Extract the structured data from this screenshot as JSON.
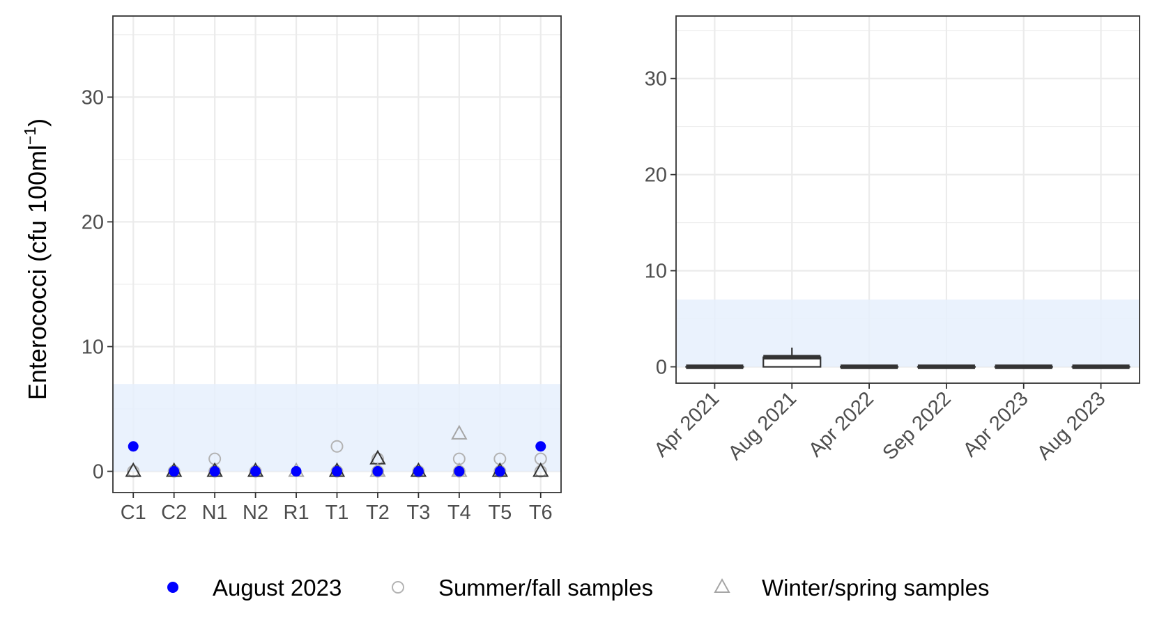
{
  "y_axis_label": "Enterococci (cfu 100ml",
  "y_axis_label_sup": "−1",
  "y_axis_label_close": ")",
  "colors": {
    "august": "#0000ff",
    "summer": "#b3b3b3",
    "winter_light": "#a6a6a6",
    "winter_dark": "#333333",
    "band": "#e6f0fd",
    "grid": "#ebebeb",
    "box": "#333333"
  },
  "chart_data": [
    {
      "type": "scatter",
      "categories": [
        "C1",
        "C2",
        "N1",
        "N2",
        "R1",
        "T1",
        "T2",
        "T3",
        "T4",
        "T5",
        "T6"
      ],
      "ylim": [
        -1.7,
        36.5
      ],
      "yticks": [
        "0",
        "10",
        "20",
        "30"
      ],
      "reference_band": [
        0,
        7
      ],
      "grid": true,
      "series": [
        {
          "name": "August 2023",
          "marker": "filled-circle",
          "points": [
            [
              "C1",
              2
            ],
            [
              "C2",
              0
            ],
            [
              "N1",
              0
            ],
            [
              "N2",
              0
            ],
            [
              "R1",
              0
            ],
            [
              "T1",
              0
            ],
            [
              "T2",
              0
            ],
            [
              "T3",
              0
            ],
            [
              "T4",
              0
            ],
            [
              "T5",
              0
            ],
            [
              "T6",
              2
            ]
          ]
        },
        {
          "name": "Summer/fall samples",
          "marker": "open-circle",
          "points": [
            [
              "C1",
              0
            ],
            [
              "C2",
              0
            ],
            [
              "N1",
              1
            ],
            [
              "N1",
              0
            ],
            [
              "N2",
              0
            ],
            [
              "T1",
              2
            ],
            [
              "T1",
              0
            ],
            [
              "T2",
              1
            ],
            [
              "T2",
              0
            ],
            [
              "T3",
              0
            ],
            [
              "T4",
              1
            ],
            [
              "T4",
              0
            ],
            [
              "T5",
              1
            ],
            [
              "T5",
              0
            ],
            [
              "T6",
              1
            ],
            [
              "T6",
              0
            ]
          ]
        },
        {
          "name": "Winter/spring samples",
          "marker": "open-triangle",
          "points": [
            [
              "C1",
              0,
              "dark"
            ],
            [
              "C2",
              0,
              "dark"
            ],
            [
              "N1",
              0,
              "dark"
            ],
            [
              "N2",
              0,
              "dark"
            ],
            [
              "R1",
              0,
              "light"
            ],
            [
              "T1",
              0,
              "dark"
            ],
            [
              "T2",
              1,
              "dark"
            ],
            [
              "T2",
              0,
              "light"
            ],
            [
              "T3",
              0,
              "dark"
            ],
            [
              "T4",
              3,
              "light"
            ],
            [
              "T4",
              0,
              "light"
            ],
            [
              "T5",
              0,
              "dark"
            ],
            [
              "T6",
              0,
              "dark"
            ]
          ]
        }
      ]
    },
    {
      "type": "box",
      "categories": [
        "Apr 2021",
        "Aug 2021",
        "Apr 2022",
        "Sep 2022",
        "Apr 2023",
        "Aug 2023"
      ],
      "ylim": [
        -1.7,
        36.5
      ],
      "yticks": [
        "0",
        "10",
        "20",
        "30"
      ],
      "reference_band": [
        0,
        7
      ],
      "grid": true,
      "boxes": [
        {
          "category": "Apr 2021",
          "min": 0,
          "q1": 0,
          "median": 0,
          "q3": 0,
          "max": 0
        },
        {
          "category": "Aug 2021",
          "min": 0,
          "q1": 0,
          "median": 1,
          "q3": 1,
          "max": 2
        },
        {
          "category": "Apr 2022",
          "min": 0,
          "q1": 0,
          "median": 0,
          "q3": 0,
          "max": 0
        },
        {
          "category": "Sep 2022",
          "min": 0,
          "q1": 0,
          "median": 0,
          "q3": 0,
          "max": 0
        },
        {
          "category": "Apr 2023",
          "min": 0,
          "q1": 0,
          "median": 0,
          "q3": 0,
          "max": 0
        },
        {
          "category": "Aug 2023",
          "min": 0,
          "q1": 0,
          "median": 0,
          "q3": 0,
          "max": 0
        }
      ]
    }
  ],
  "legend": {
    "items": [
      {
        "label": "August 2023",
        "marker": "filled-circle"
      },
      {
        "label": "Summer/fall samples",
        "marker": "open-circle"
      },
      {
        "label": "Winter/spring samples",
        "marker": "open-triangle"
      }
    ]
  }
}
